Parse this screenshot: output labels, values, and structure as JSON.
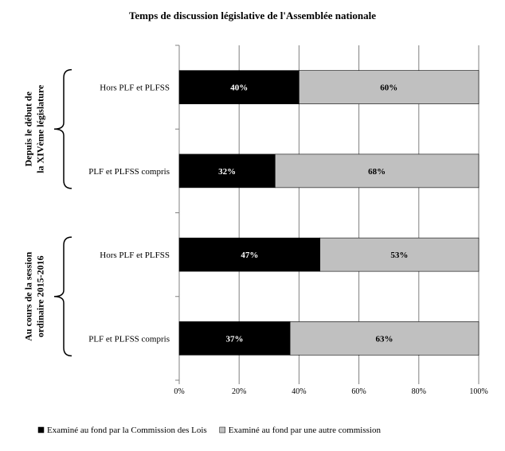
{
  "chart_data": {
    "type": "bar",
    "orientation": "horizontal",
    "stacked": "percent",
    "title": "Temps de discussion législative de l'Assemblée nationale",
    "groups": [
      {
        "label_lines": [
          "Depuis le début de",
          "la XIVème législature"
        ],
        "categories": [
          "Hors PLF et PLFSS",
          "PLF et PLFSS compris"
        ]
      },
      {
        "label_lines": [
          "Au cours de la session",
          "ordinaire 2015-2016"
        ],
        "categories": [
          "Hors PLF et PLFSS",
          "PLF et PLFSS compris"
        ]
      }
    ],
    "categories": [
      "Hors PLF et PLFSS",
      "PLF et PLFSS compris",
      "Hors PLF et PLFSS",
      "PLF et PLFSS compris"
    ],
    "series": [
      {
        "name": "Examiné au fond par la Commission des Lois",
        "color": "#000000",
        "label_color": "#ffffff",
        "values": [
          40,
          32,
          47,
          37
        ],
        "labels": [
          "40%",
          "32%",
          "47%",
          "37%"
        ]
      },
      {
        "name": "Examiné au fond par une autre commission",
        "color": "#c0c0c0",
        "label_color": "#000000",
        "values": [
          60,
          68,
          53,
          63
        ],
        "labels": [
          "60%",
          "68%",
          "53%",
          "63%"
        ]
      }
    ],
    "xlim": [
      0,
      100
    ],
    "xticks": [
      0,
      20,
      40,
      60,
      80,
      100
    ],
    "xtick_labels": [
      "0%",
      "20%",
      "40%",
      "60%",
      "80%",
      "100%"
    ],
    "xlabel": "",
    "ylabel": "",
    "grid": true,
    "legend_position": "bottom"
  }
}
